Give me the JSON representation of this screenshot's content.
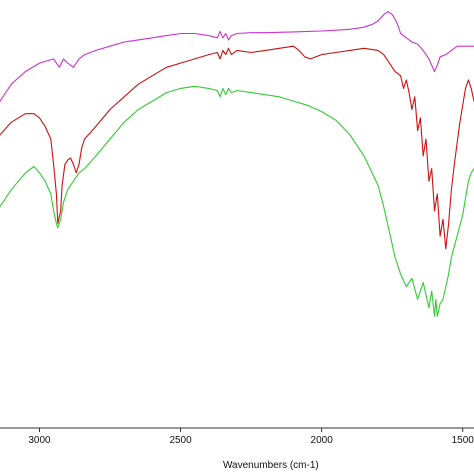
{
  "chart_data": {
    "type": "line",
    "title": "",
    "xlabel": "Wavenumbers (cm-1)",
    "ylabel": "",
    "x_reversed": true,
    "xlim": [
      3140,
      1460
    ],
    "ylim": [
      0,
      100
    ],
    "grid": false,
    "x_ticks": [
      3000,
      2500,
      2000,
      1500
    ],
    "x_tick_labels": [
      "3000",
      "2500",
      "2000",
      "1500"
    ],
    "series": [
      {
        "color": "#cc33cc",
        "x": [
          3140,
          3100,
          3050,
          3000,
          2950,
          2930,
          2915,
          2900,
          2880,
          2860,
          2840,
          2800,
          2750,
          2700,
          2650,
          2600,
          2550,
          2500,
          2450,
          2400,
          2370,
          2360,
          2350,
          2340,
          2330,
          2320,
          2300,
          2250,
          2200,
          2150,
          2100,
          2050,
          2000,
          1950,
          1900,
          1850,
          1820,
          1800,
          1780,
          1765,
          1750,
          1740,
          1730,
          1720,
          1700,
          1680,
          1660,
          1640,
          1620,
          1600,
          1590,
          1580,
          1560,
          1540,
          1520,
          1500,
          1480,
          1460
        ],
        "y": [
          77,
          81,
          84,
          86,
          87,
          85,
          87,
          86,
          85,
          87,
          88,
          89,
          90,
          91,
          91.5,
          92,
          92.5,
          93,
          93,
          92.5,
          92,
          93.5,
          92,
          93,
          91.5,
          92.5,
          93,
          93.2,
          93.2,
          93.3,
          93.4,
          93.5,
          93.6,
          93.8,
          94,
          94.5,
          95.2,
          96,
          97.5,
          98.2,
          97.5,
          96.5,
          95,
          93,
          92,
          91,
          90.5,
          89,
          87,
          84,
          85.5,
          87.5,
          88,
          89,
          90,
          90,
          90,
          90
        ]
      },
      {
        "color": "#cc1111",
        "x": [
          3140,
          3100,
          3050,
          3020,
          3000,
          2980,
          2960,
          2950,
          2940,
          2935,
          2925,
          2920,
          2910,
          2900,
          2890,
          2880,
          2870,
          2860,
          2850,
          2840,
          2800,
          2750,
          2700,
          2650,
          2600,
          2550,
          2500,
          2450,
          2400,
          2370,
          2360,
          2350,
          2340,
          2330,
          2320,
          2300,
          2250,
          2200,
          2150,
          2100,
          2080,
          2060,
          2040,
          2000,
          1950,
          1900,
          1850,
          1800,
          1780,
          1760,
          1740,
          1720,
          1710,
          1700,
          1690,
          1680,
          1670,
          1660,
          1650,
          1640,
          1630,
          1620,
          1610,
          1600,
          1590,
          1580,
          1570,
          1560,
          1550,
          1540,
          1530,
          1520,
          1510,
          1500,
          1490,
          1480,
          1470,
          1460
        ],
        "y": [
          69,
          72,
          74,
          74,
          73,
          71,
          68,
          62,
          55,
          48,
          51,
          57,
          62,
          63,
          63.5,
          62,
          60,
          62,
          66,
          68,
          71,
          75,
          78,
          81,
          83,
          85,
          86,
          87,
          88,
          88.5,
          87,
          89,
          88,
          89.5,
          88,
          89,
          88.5,
          89,
          89.5,
          90,
          89,
          87.5,
          87,
          88,
          88.5,
          89,
          89.5,
          89,
          88,
          86,
          84,
          83,
          80,
          82,
          79,
          75,
          78,
          70,
          73,
          64,
          68,
          58,
          61,
          51,
          55,
          45,
          49,
          42,
          48,
          56,
          62,
          67,
          72,
          76,
          80,
          82,
          80,
          77
        ]
      },
      {
        "color": "#33cc33",
        "x": [
          3140,
          3100,
          3050,
          3020,
          3000,
          2980,
          2960,
          2950,
          2940,
          2935,
          2925,
          2915,
          2900,
          2880,
          2860,
          2840,
          2800,
          2750,
          2700,
          2650,
          2600,
          2550,
          2500,
          2450,
          2400,
          2370,
          2360,
          2350,
          2340,
          2330,
          2320,
          2300,
          2250,
          2200,
          2150,
          2100,
          2050,
          2000,
          1950,
          1900,
          1850,
          1800,
          1780,
          1760,
          1740,
          1720,
          1700,
          1680,
          1660,
          1640,
          1620,
          1610,
          1600,
          1595,
          1590,
          1580,
          1570,
          1560,
          1550,
          1540,
          1520,
          1500,
          1490,
          1480,
          1470,
          1460
        ],
        "y": [
          52,
          56,
          60,
          61.5,
          60,
          58,
          55,
          51,
          48,
          47,
          49,
          53,
          56,
          58,
          60,
          61,
          64,
          68,
          72,
          75,
          77,
          79,
          80,
          80.5,
          80,
          79.5,
          78,
          80,
          78.5,
          80,
          79,
          79.5,
          79,
          78.5,
          78,
          77,
          76,
          74.5,
          72.5,
          69,
          64,
          57,
          52,
          46,
          40,
          36,
          33,
          35,
          30,
          34,
          28,
          32,
          26,
          30,
          26,
          29,
          30,
          33,
          36,
          40,
          45,
          50,
          54,
          58,
          60,
          61
        ]
      }
    ]
  }
}
